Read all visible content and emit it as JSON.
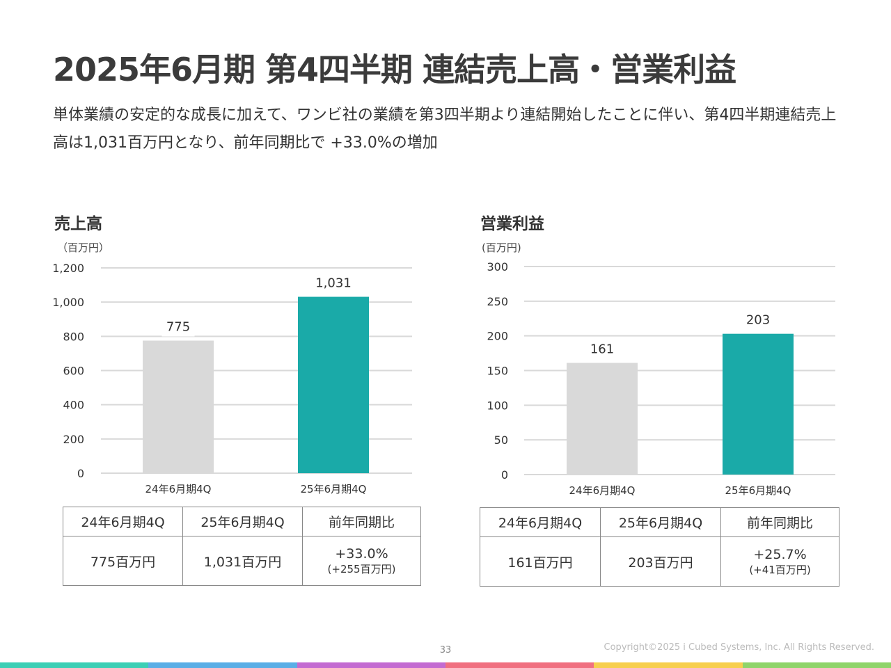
{
  "title": "2025年6月期 第4四半期 連結売上高・営業利益",
  "lead": "単体業績の安定的な成長に加えて、ワンビ社の業績を第3四半期より連結開始したことに伴い、第4四半期連結売上高は1,031百万円となり、前年同期比で +33.0%の増加",
  "sales": {
    "heading": "売上高",
    "unit": "（百万円）",
    "table": {
      "headers": [
        "24年6月期4Q",
        "25年6月期4Q",
        "前年同期比"
      ],
      "values": [
        "775百万円",
        "1,031百万円"
      ],
      "yoy": "+33.0%",
      "yoy_diff": "(+255百万円)"
    }
  },
  "operating": {
    "heading": "営業利益",
    "unit": "(百万円)",
    "table": {
      "headers": [
        "24年6月期4Q",
        "25年6月期4Q",
        "前年同期比"
      ],
      "values": [
        "161百万円",
        "203百万円"
      ],
      "yoy": "+25.7%",
      "yoy_diff": "(+41百万円)"
    }
  },
  "chart_data": [
    {
      "type": "bar",
      "title": "売上高",
      "ylabel": "（百万円）",
      "categories": [
        "24年6月期4Q",
        "25年6月期4Q"
      ],
      "values": [
        775,
        1031
      ],
      "value_labels": [
        "775",
        "1,031"
      ],
      "ylim": [
        0,
        1200
      ],
      "yticks": [
        0,
        200,
        400,
        600,
        800,
        1000,
        1200
      ],
      "ytick_labels": [
        "0",
        "200",
        "400",
        "600",
        "800",
        "1,000",
        "1,200"
      ],
      "colors": [
        "#d9d9d9",
        "#1aaaa8"
      ],
      "grid": true
    },
    {
      "type": "bar",
      "title": "営業利益",
      "ylabel": "(百万円)",
      "categories": [
        "24年6月期4Q",
        "25年6月期4Q"
      ],
      "values": [
        161,
        203
      ],
      "value_labels": [
        "161",
        "203"
      ],
      "ylim": [
        0,
        300
      ],
      "yticks": [
        0,
        50,
        100,
        150,
        200,
        250,
        300
      ],
      "ytick_labels": [
        "0",
        "50",
        "100",
        "150",
        "200",
        "250",
        "300"
      ],
      "colors": [
        "#d9d9d9",
        "#1aaaa8"
      ],
      "grid": true
    }
  ],
  "footer": {
    "page_number": "33",
    "copyright": "Copyright©2025 i Cubed Systems, Inc. All Rights Reserved.",
    "bar_colors": [
      "#3ccfb5",
      "#5aaee6",
      "#c36bd1",
      "#f07080",
      "#f7cf4e",
      "#8fd46a"
    ]
  }
}
